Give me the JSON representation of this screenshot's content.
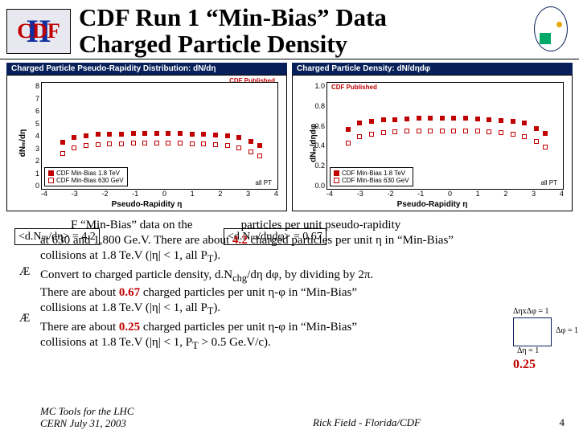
{
  "header": {
    "logo_ii": "II",
    "logo_cdf": "CDF",
    "title_line1": "CDF Run 1 “Min-Bias” Data",
    "title_line2": "Charged Particle Density"
  },
  "chart_left": {
    "type": "scatter",
    "title_bar": "Charged Particle Pseudo-Rapidity Distribution: dN/dη",
    "pub_label": "CDF Published",
    "pt_label": "all PT",
    "ylabel": "dNₘ/dη",
    "xlabel": "Pseudo-Rapidity η",
    "xlim": [
      -4,
      4
    ],
    "xtick_step": 1,
    "xticks": [
      "-4",
      "-3",
      "-2",
      "-1",
      "0",
      "1",
      "2",
      "3",
      "4"
    ],
    "ylim": [
      0,
      8
    ],
    "ytick_step": 1,
    "yticks": [
      "0",
      "1",
      "2",
      "3",
      "4",
      "5",
      "6",
      "7",
      "8"
    ],
    "legend_items": [
      "CDF Min-Bias 630 GeV",
      "CDF Min-Bias 1.8 TeV"
    ],
    "series": [
      {
        "name": "1.8 TeV",
        "marker": "square-filled",
        "color": "#c00000",
        "size": 6,
        "points": [
          [
            -3.3,
            3.5
          ],
          [
            -2.9,
            3.9
          ],
          [
            -2.5,
            4.0
          ],
          [
            -2.1,
            4.1
          ],
          [
            -1.7,
            4.1
          ],
          [
            -1.3,
            4.15
          ],
          [
            -0.9,
            4.18
          ],
          [
            -0.5,
            4.2
          ],
          [
            -0.1,
            4.2
          ],
          [
            0.3,
            4.2
          ],
          [
            0.7,
            4.18
          ],
          [
            1.1,
            4.15
          ],
          [
            1.5,
            4.1
          ],
          [
            1.9,
            4.05
          ],
          [
            2.3,
            4.0
          ],
          [
            2.7,
            3.9
          ],
          [
            3.1,
            3.6
          ],
          [
            3.4,
            3.3
          ]
        ]
      },
      {
        "name": "630 GeV",
        "marker": "square-open",
        "color": "#c00000",
        "size": 6,
        "points": [
          [
            -3.3,
            2.7
          ],
          [
            -2.9,
            3.1
          ],
          [
            -2.5,
            3.25
          ],
          [
            -2.1,
            3.35
          ],
          [
            -1.7,
            3.4
          ],
          [
            -1.3,
            3.42
          ],
          [
            -0.9,
            3.44
          ],
          [
            -0.5,
            3.45
          ],
          [
            -0.1,
            3.45
          ],
          [
            0.3,
            3.45
          ],
          [
            0.7,
            3.44
          ],
          [
            1.1,
            3.42
          ],
          [
            1.5,
            3.38
          ],
          [
            1.9,
            3.33
          ],
          [
            2.3,
            3.25
          ],
          [
            2.7,
            3.1
          ],
          [
            3.1,
            2.8
          ],
          [
            3.4,
            2.5
          ]
        ]
      }
    ],
    "grid_color": "#e0e0e0",
    "bg": "#ffffff",
    "label_fontsize": 10
  },
  "chart_right": {
    "type": "scatter",
    "title_bar": "Charged Particle Density: dN/dηdφ",
    "pub_label": "CDF Published",
    "pt_label": "all PT",
    "ylabel": "dNₘ/dηdφ",
    "xlabel": "Pseudo-Rapidity η",
    "xlim": [
      -4,
      4
    ],
    "xtick_step": 1,
    "xticks": [
      "-4",
      "-3",
      "-2",
      "-1",
      "0",
      "1",
      "2",
      "3",
      "4"
    ],
    "ylim": [
      0,
      1.0
    ],
    "ytick_step": 0.2,
    "yticks": [
      "0.0",
      "0.2",
      "0.4",
      "0.6",
      "0.8",
      "1.0"
    ],
    "legend_items": [
      "CDF Min-Bias 630 GeV",
      "CDF Min-Bias 1.8 TeV"
    ],
    "series": [
      {
        "name": "1.8 TeV",
        "marker": "square-filled",
        "color": "#c00000",
        "size": 6,
        "points": [
          [
            -3.3,
            0.56
          ],
          [
            -2.9,
            0.62
          ],
          [
            -2.5,
            0.64
          ],
          [
            -2.1,
            0.65
          ],
          [
            -1.7,
            0.655
          ],
          [
            -1.3,
            0.66
          ],
          [
            -0.9,
            0.665
          ],
          [
            -0.5,
            0.67
          ],
          [
            -0.1,
            0.67
          ],
          [
            0.3,
            0.67
          ],
          [
            0.7,
            0.665
          ],
          [
            1.1,
            0.66
          ],
          [
            1.5,
            0.655
          ],
          [
            1.9,
            0.645
          ],
          [
            2.3,
            0.635
          ],
          [
            2.7,
            0.62
          ],
          [
            3.1,
            0.57
          ],
          [
            3.4,
            0.525
          ]
        ]
      },
      {
        "name": "630 GeV",
        "marker": "square-open",
        "color": "#c00000",
        "size": 6,
        "points": [
          [
            -3.3,
            0.43
          ],
          [
            -2.9,
            0.49
          ],
          [
            -2.5,
            0.517
          ],
          [
            -2.1,
            0.533
          ],
          [
            -1.7,
            0.541
          ],
          [
            -1.3,
            0.544
          ],
          [
            -0.9,
            0.548
          ],
          [
            -0.5,
            0.549
          ],
          [
            -0.1,
            0.549
          ],
          [
            0.3,
            0.549
          ],
          [
            0.7,
            0.548
          ],
          [
            1.1,
            0.544
          ],
          [
            1.5,
            0.538
          ],
          [
            1.9,
            0.53
          ],
          [
            2.3,
            0.517
          ],
          [
            2.7,
            0.493
          ],
          [
            3.1,
            0.446
          ],
          [
            3.4,
            0.398
          ]
        ]
      }
    ],
    "grid_color": "#e0e0e0",
    "bg": "#ffffff",
    "label_fontsize": 10
  },
  "callout_left": "<d.Nₘ/dη> = 4.2",
  "callout_right": "<d.Nₘ/dηdφ> = 0.67",
  "bullets": {
    "b1a": "F “Min-Bias” data on the",
    "b1b": "particles per unit pseudo-rapidity",
    "b1c": "at 630 and 1,800 Ge.V.  There are about ",
    "b1d": " charged particles per unit η in “Min-Bias”",
    "b1e": "collisions at 1.8 Te.V (|η| < 1, all P",
    "b1e2": ").",
    "v1": "4.2",
    "b2a": "Convert to charged particle density, d.N",
    "b2a2": "/dη dφ, by dividing by 2π.",
    "b2b": "There are about ",
    "b2c": " charged particles per unit η-φ in “Min-Bias”",
    "b2d": "collisions at 1.8 Te.V (|η| < 1, all P",
    "b2d2": ").",
    "v2": "0.67",
    "b3a": "There are about ",
    "b3b": " charged particles per unit η-φ in “Min-Bias”",
    "b3c": "collisions at 1.8 Te.V (|η| < 1, P",
    "b3c2": " > 0.5 Ge.V/c).",
    "v3": "0.25",
    "T_sub": "T",
    "chg_sub": "chg"
  },
  "unit_diagram": {
    "deta": "ΔηxΔφ = 1",
    "dphi": "Δφ = 1",
    "deta_only": "Δη = 1",
    "value": "0.25",
    "box_color": "#07205a"
  },
  "footer": {
    "left_line1": "MC Tools for the LHC",
    "left_line2": "CERN July 31, 2003",
    "mid": "Rick Field - Florida/CDF",
    "page": "4"
  }
}
